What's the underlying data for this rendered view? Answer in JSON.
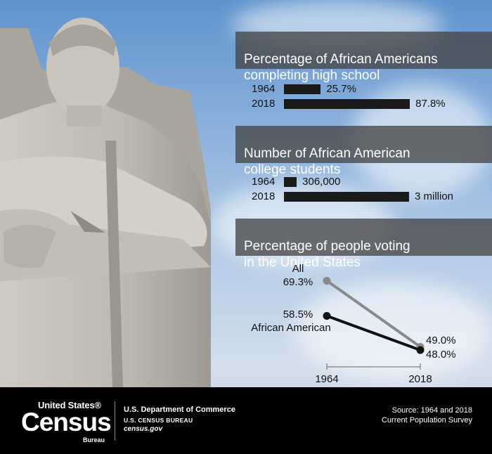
{
  "chart_data": [
    {
      "type": "bar",
      "title": "Percentage of African Americans\ncompleting high school",
      "categories": [
        "1964",
        "2018"
      ],
      "values": [
        25.7,
        87.8
      ],
      "value_labels": [
        "25.7%",
        "87.8%"
      ],
      "xlim": [
        0,
        100
      ]
    },
    {
      "type": "bar",
      "title": "Number of African American\ncollege students",
      "categories": [
        "1964",
        "2018"
      ],
      "values": [
        306000,
        3000000
      ],
      "value_labels": [
        "306,000",
        "3 million"
      ],
      "xlim": [
        0,
        3000000
      ]
    },
    {
      "type": "line",
      "title": "Percentage of people voting\nin the United States",
      "x": [
        "1964",
        "2018"
      ],
      "series": [
        {
          "name": "All",
          "values": [
            69.3,
            49.0
          ],
          "value_labels": [
            "69.3%",
            "49.0%"
          ],
          "color": "#8a8a8a"
        },
        {
          "name": "African American",
          "values": [
            58.5,
            48.0
          ],
          "value_labels": [
            "58.5%",
            "48.0%"
          ],
          "color": "#111111"
        }
      ],
      "ylim": [
        45,
        72
      ]
    }
  ],
  "footer": {
    "logo_top": "United States®",
    "logo_main": "Census",
    "logo_sub": "Bureau",
    "department": "U.S. Department of Commerce",
    "bureau": "U.S. CENSUS BUREAU",
    "website": "census.gov",
    "source_line1": "Source: 1964 and 2018",
    "source_line2": "Current Population Survey"
  }
}
